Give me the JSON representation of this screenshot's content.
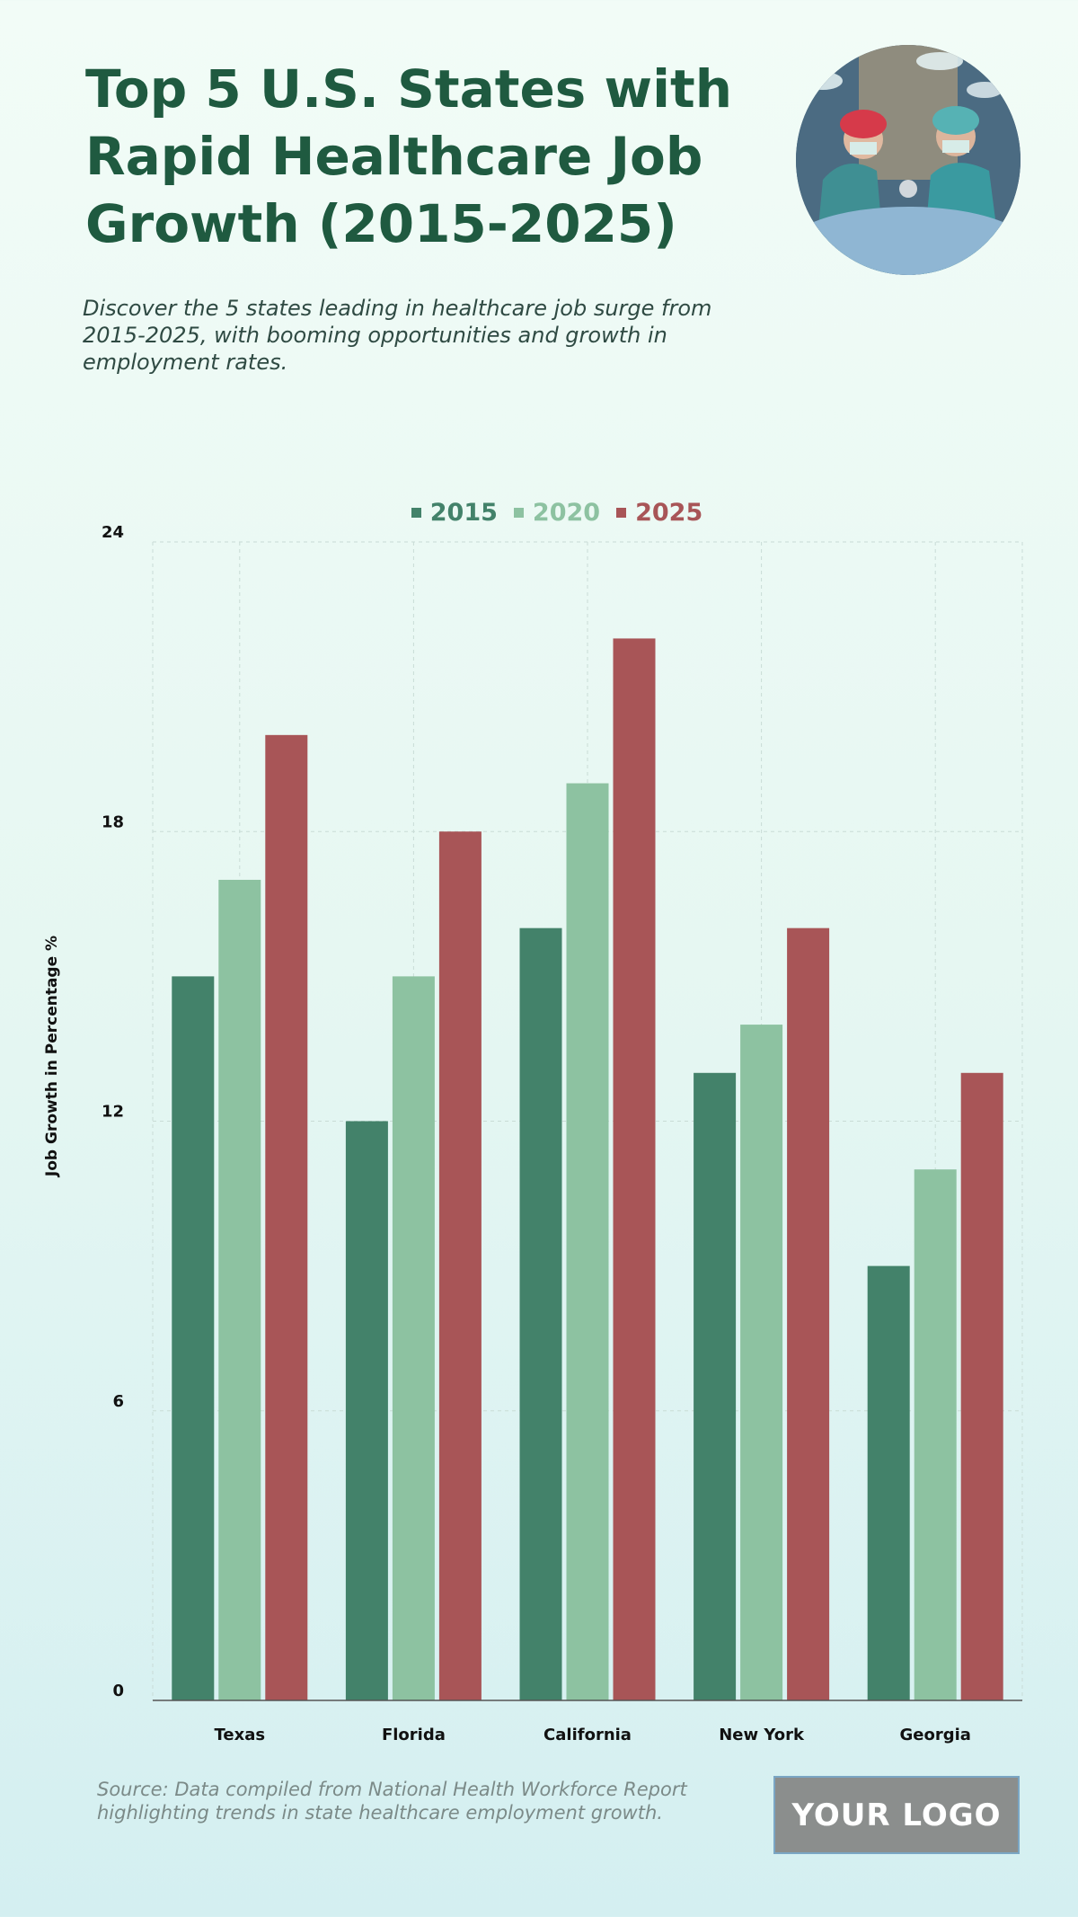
{
  "header": {
    "title": "Top 5 U.S. States with Rapid Healthcare Job Growth (2015-2025)",
    "subtitle": "Discover the 5 states leading in healthcare job surge from 2015-2025, with booming opportunities and growth in employment rates."
  },
  "footer": {
    "source": "Source: Data compiled from National Health Workforce Report highlighting trends in state healthcare employment growth.",
    "logo_text": "YOUR LOGO"
  },
  "colors": {
    "title": "#1f5a40",
    "s2015": "#43826a",
    "s2020": "#8dc2a1",
    "s2025": "#a85557",
    "grid": "#c9dcd6"
  },
  "chart_data": {
    "type": "bar",
    "categories": [
      "Texas",
      "Florida",
      "California",
      "New York",
      "Georgia"
    ],
    "series": [
      {
        "name": "2015",
        "color": "#43826a",
        "values": [
          15,
          12,
          16,
          13,
          9
        ]
      },
      {
        "name": "2020",
        "color": "#8dc2a1",
        "values": [
          17,
          15,
          19,
          14,
          11
        ]
      },
      {
        "name": "2025",
        "color": "#a85557",
        "values": [
          20,
          18,
          22,
          16,
          13
        ]
      }
    ],
    "ylabel": "Job Growth in Percentage %",
    "ylim": [
      0,
      24
    ],
    "yticks": [
      0,
      6,
      12,
      18,
      24
    ],
    "grid": true,
    "legend_position": "top-center"
  }
}
